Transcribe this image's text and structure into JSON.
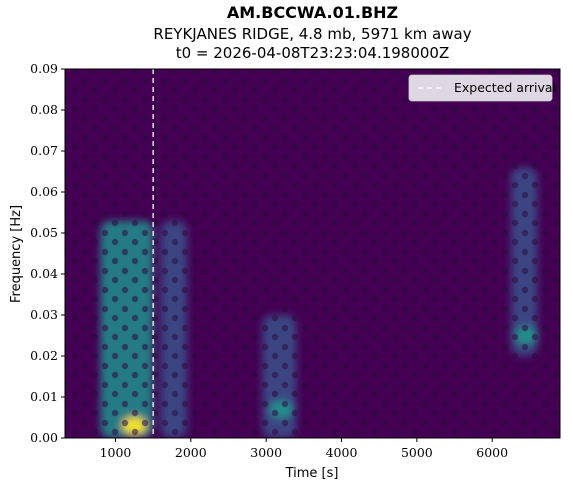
{
  "title": {
    "station": "AM.BCCWA.01.BHZ",
    "event": "REYKJANES RIDGE, 4.8 mb, 5971 km away",
    "origin": "t0 = 2026-04-08T23:23:04.198000Z"
  },
  "chart_data": {
    "type": "heatmap",
    "xlabel": "Time [s]",
    "ylabel": "Frequency [Hz]",
    "xlim": [
      330,
      6900
    ],
    "ylim": [
      0,
      0.09
    ],
    "x_ticks": [
      1000,
      2000,
      3000,
      4000,
      5000,
      6000
    ],
    "y_ticks": [
      0.0,
      0.01,
      0.02,
      0.03,
      0.04,
      0.05,
      0.06,
      0.07,
      0.08,
      0.09
    ],
    "x_tick_labels": [
      "1000",
      "2000",
      "3000",
      "4000",
      "5000",
      "6000"
    ],
    "y_tick_labels": [
      "0.00",
      "0.01",
      "0.02",
      "0.03",
      "0.04",
      "0.05",
      "0.06",
      "0.07",
      "0.08",
      "0.09"
    ],
    "colormap": "viridis",
    "expected_arrival_time": 1500,
    "legend": {
      "label": "Expected arrival",
      "placement": "top-right"
    },
    "energy_bands": [
      {
        "t_start": 800,
        "t_end": 1500,
        "f_low": 0.0,
        "f_high": 0.053,
        "peak_frequency": 0.003,
        "peak_time": 1250,
        "relative_power": 1.0
      },
      {
        "t_start": 1600,
        "t_end": 1950,
        "f_low": 0.0,
        "f_high": 0.053,
        "relative_power": 0.55
      },
      {
        "t_start": 2950,
        "t_end": 3400,
        "f_low": 0.0,
        "f_high": 0.03,
        "peak_frequency": 0.007,
        "peak_time": 3200,
        "relative_power": 0.6
      },
      {
        "t_start": 6250,
        "t_end": 6600,
        "f_low": 0.02,
        "f_high": 0.066,
        "peak_frequency": 0.025,
        "peak_time": 6450,
        "relative_power": 0.5
      }
    ]
  },
  "colors": {
    "background": "#440154",
    "arrival_line": "#ffffff",
    "colormap_stops": [
      "#440154",
      "#3b528b",
      "#21918c",
      "#5ec962",
      "#fde725"
    ]
  }
}
